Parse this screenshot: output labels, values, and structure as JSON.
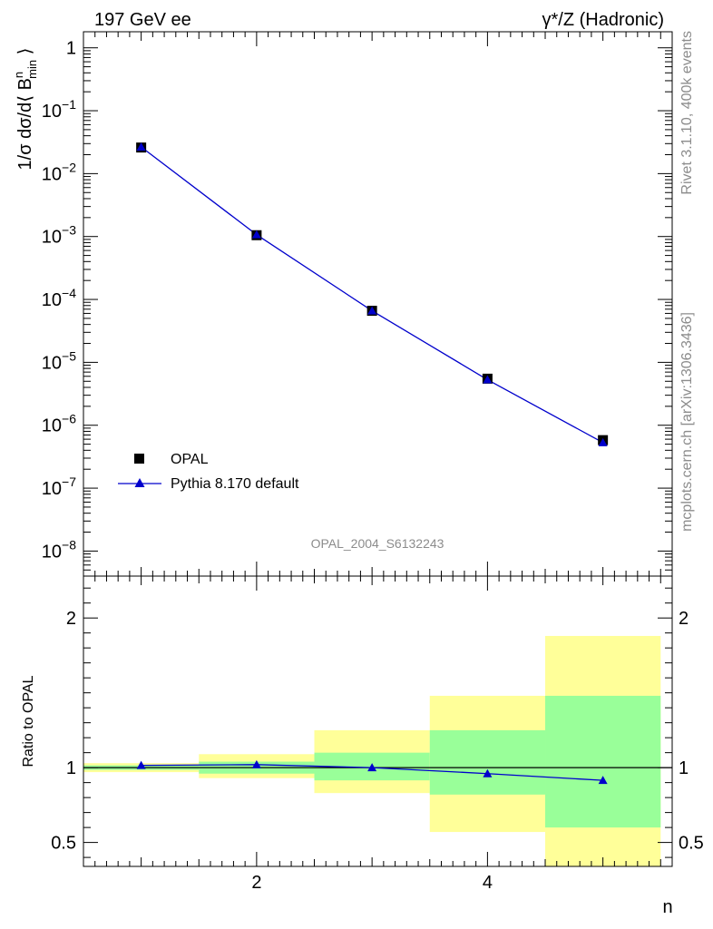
{
  "header": {
    "left": "197 GeV ee",
    "right": "γ*/Z (Hadronic)"
  },
  "side_labels": {
    "rivet": "Rivet 3.1.10,  400k events",
    "mcplots": "mcplots.cern.ch [arXiv:1306.3436]"
  },
  "watermark": "OPAL_2004_S6132243",
  "legend": {
    "data": "OPAL",
    "mc": "Pythia 8.170 default"
  },
  "colors": {
    "mc": "#0000cc",
    "data": "#000000",
    "band_inner": "#99ff99",
    "band_outer": "#ffff99"
  },
  "chart_data": [
    {
      "type": "scatter",
      "panel": "main",
      "ylabel_parts": {
        "a": "1/σ dσ/d⟨ B",
        "sup": "n",
        "sub": "min",
        "c": " ⟩"
      },
      "yscale": "log",
      "ylim": [
        4e-09,
        1.8
      ],
      "y_ticks": [
        {
          "v": 1,
          "label": "1"
        },
        {
          "v": 0.1,
          "label": "10",
          "exp": "−1"
        },
        {
          "v": 0.01,
          "label": "10",
          "exp": "−2"
        },
        {
          "v": 0.001,
          "label": "10",
          "exp": "−3"
        },
        {
          "v": 0.0001,
          "label": "10",
          "exp": "−4"
        },
        {
          "v": 1e-05,
          "label": "10",
          "exp": "−5"
        },
        {
          "v": 1e-06,
          "label": "10",
          "exp": "−6"
        },
        {
          "v": 1e-07,
          "label": "10",
          "exp": "−7"
        },
        {
          "v": 1e-08,
          "label": "10",
          "exp": "−8"
        }
      ],
      "xlim": [
        0.5,
        5.6
      ],
      "series": [
        {
          "name": "OPAL",
          "x": [
            1,
            2,
            3,
            4,
            5
          ],
          "y": [
            0.026,
            0.00105,
            6.6e-05,
            5.5e-06,
            5.8e-07
          ]
        },
        {
          "name": "Pythia 8.170 default",
          "x": [
            1,
            2,
            3,
            4,
            5
          ],
          "y": [
            0.0265,
            0.00107,
            6.6e-05,
            5.3e-06,
            5.3e-07
          ]
        }
      ],
      "legend_position": "bottom-left"
    },
    {
      "type": "line",
      "panel": "ratio",
      "ylabel": "Ratio to OPAL",
      "ylim": [
        0.34,
        2.28
      ],
      "y_ticks": [
        {
          "v": 0.5,
          "label": "0.5"
        },
        {
          "v": 1,
          "label": "1"
        },
        {
          "v": 2,
          "label": "2"
        }
      ],
      "xlabel": "n",
      "xlim": [
        0.5,
        5.6
      ],
      "x_ticks": [
        {
          "v": 2,
          "label": "2"
        },
        {
          "v": 4,
          "label": "4"
        }
      ],
      "bands": [
        {
          "x0": 0.5,
          "x1": 1.5,
          "inner": [
            0.985,
            1.015
          ],
          "outer": [
            0.97,
            1.03
          ]
        },
        {
          "x0": 1.5,
          "x1": 2.5,
          "inner": [
            0.96,
            1.04
          ],
          "outer": [
            0.93,
            1.09
          ]
        },
        {
          "x0": 2.5,
          "x1": 3.5,
          "inner": [
            0.915,
            1.1
          ],
          "outer": [
            0.83,
            1.25
          ]
        },
        {
          "x0": 3.5,
          "x1": 4.5,
          "inner": [
            0.82,
            1.25
          ],
          "outer": [
            0.57,
            1.48
          ]
        },
        {
          "x0": 4.5,
          "x1": 5.5,
          "inner": [
            0.6,
            1.48
          ],
          "outer": [
            0.34,
            1.88
          ]
        }
      ],
      "series": [
        {
          "name": "Pythia 8.170 default",
          "x": [
            1,
            2,
            3,
            4,
            5
          ],
          "y": [
            1.015,
            1.02,
            1.0,
            0.96,
            0.915
          ]
        }
      ],
      "reference": 1
    }
  ]
}
